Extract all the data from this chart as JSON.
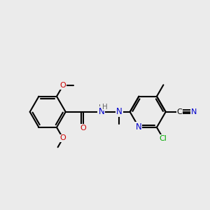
{
  "bg_color": "#ebebeb",
  "bond_color": "#000000",
  "bond_width": 1.5,
  "font_size": 8,
  "fig_width": 3.0,
  "fig_height": 3.0,
  "colors": {
    "O": "#cc0000",
    "N": "#0000cc",
    "Cl": "#00aa00",
    "H": "#666666",
    "C": "#000000",
    "default": "#000000"
  }
}
